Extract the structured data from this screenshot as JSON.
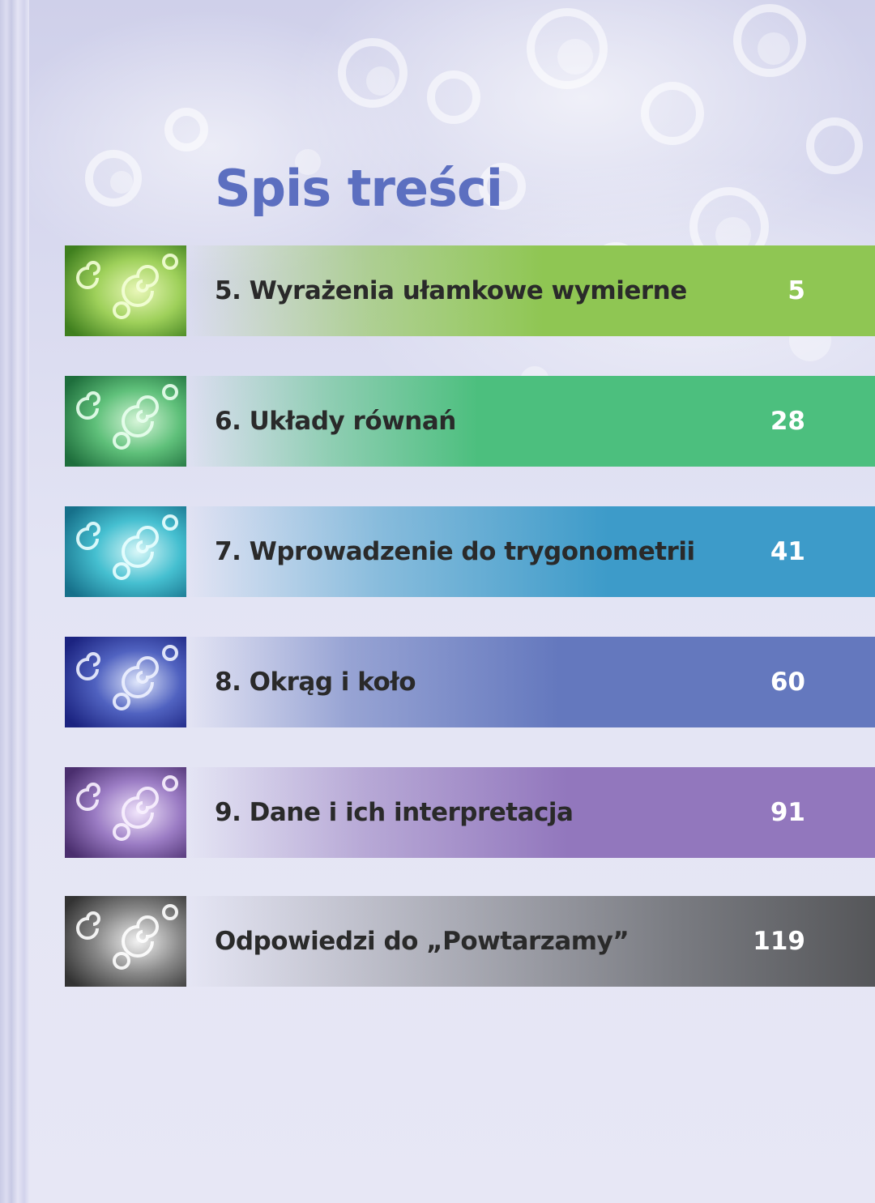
{
  "title": "Spis treści",
  "entries": [
    {
      "label": "5. Wyrażenia ułamkowe wymierne",
      "page": "5",
      "color": "#8fc653",
      "thumb_tint": "#7ab83a"
    },
    {
      "label": "6. Układy równań",
      "page": "28",
      "color": "#4cbf7e",
      "thumb_tint": "#2f9a5a"
    },
    {
      "label": "7. Wprowadzenie do trygonometrii",
      "page": "41",
      "color": "#3d9bc9",
      "thumb_tint": "#2aa7b8"
    },
    {
      "label": "8. Okrąg i koło",
      "page": "60",
      "color": "#6478be",
      "thumb_tint": "#3645a0"
    },
    {
      "label": "9. Dane i ich interpretacja",
      "page": "91",
      "color": "#9277bd",
      "thumb_tint": "#6e4f92"
    },
    {
      "label": "Odpowiedzi do „Powtarzamy”",
      "page": "119",
      "color": "#606266",
      "thumb_tint": "#5a5a5a"
    }
  ]
}
